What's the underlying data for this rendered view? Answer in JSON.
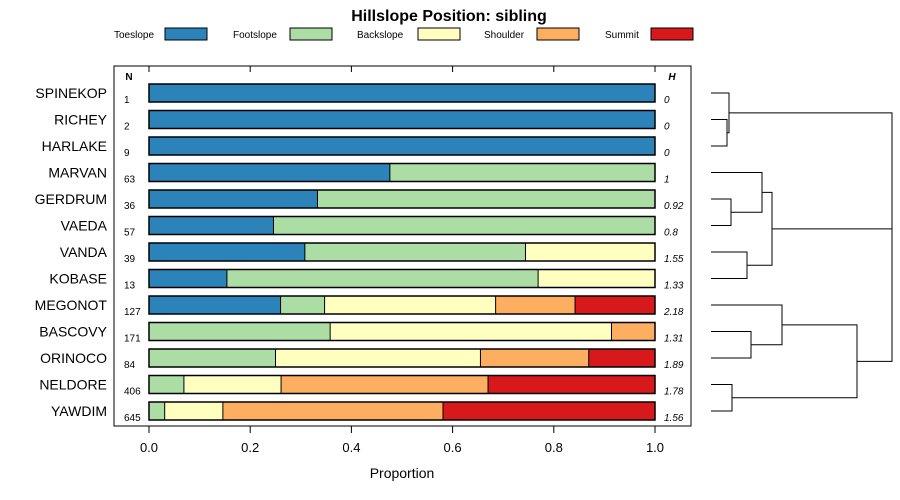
{
  "chart_data": {
    "type": "bar",
    "stacked": true,
    "orientation": "horizontal",
    "title": "Hillslope Position: sibling",
    "xlabel": "Proportion",
    "xlim": [
      0,
      1
    ],
    "xticks": [
      "0.0",
      "0.2",
      "0.4",
      "0.6",
      "0.8",
      "1.0"
    ],
    "xtick_values": [
      0,
      0.2,
      0.4,
      0.6,
      0.8,
      1.0
    ],
    "n_header": "N",
    "h_header": "H",
    "legend": [
      {
        "name": "Toeslope",
        "color": "#2b83ba"
      },
      {
        "name": "Footslope",
        "color": "#abdda4"
      },
      {
        "name": "Backslope",
        "color": "#ffffbf"
      },
      {
        "name": "Shoulder",
        "color": "#fdae61"
      },
      {
        "name": "Summit",
        "color": "#d7191c"
      }
    ],
    "categories": [
      "SPINEKOP",
      "RICHEY",
      "HARLAKE",
      "MARVAN",
      "GERDRUM",
      "VAEDA",
      "VANDA",
      "KOBASE",
      "MEGONOT",
      "BASCOVY",
      "ORINOCO",
      "NELDORE",
      "YAWDIM"
    ],
    "n": [
      "1",
      "2",
      "9",
      "63",
      "36",
      "57",
      "39",
      "13",
      "127",
      "171",
      "84",
      "406",
      "645"
    ],
    "h": [
      "0",
      "0",
      "0",
      "1",
      "0.92",
      "0.8",
      "1.55",
      "1.33",
      "2.18",
      "1.31",
      "1.89",
      "1.78",
      "1.56"
    ],
    "series": [
      {
        "name": "Toeslope",
        "values": [
          1.0,
          1.0,
          1.0,
          0.476,
          0.333,
          0.246,
          0.308,
          0.154,
          0.26,
          0,
          0,
          0,
          0
        ]
      },
      {
        "name": "Footslope",
        "values": [
          0,
          0,
          0,
          0.524,
          0.667,
          0.754,
          0.436,
          0.615,
          0.087,
          0.358,
          0.25,
          0.069,
          0.031
        ]
      },
      {
        "name": "Backslope",
        "values": [
          0,
          0,
          0,
          0,
          0,
          0,
          0.256,
          0.231,
          0.338,
          0.556,
          0.405,
          0.192,
          0.115
        ]
      },
      {
        "name": "Shoulder",
        "values": [
          0,
          0,
          0,
          0,
          0,
          0,
          0,
          0,
          0.157,
          0.086,
          0.214,
          0.409,
          0.435
        ]
      },
      {
        "name": "Summit",
        "values": [
          0,
          0,
          0,
          0,
          0,
          0,
          0,
          0,
          0.158,
          0,
          0.131,
          0.33,
          0.419
        ]
      }
    ]
  }
}
